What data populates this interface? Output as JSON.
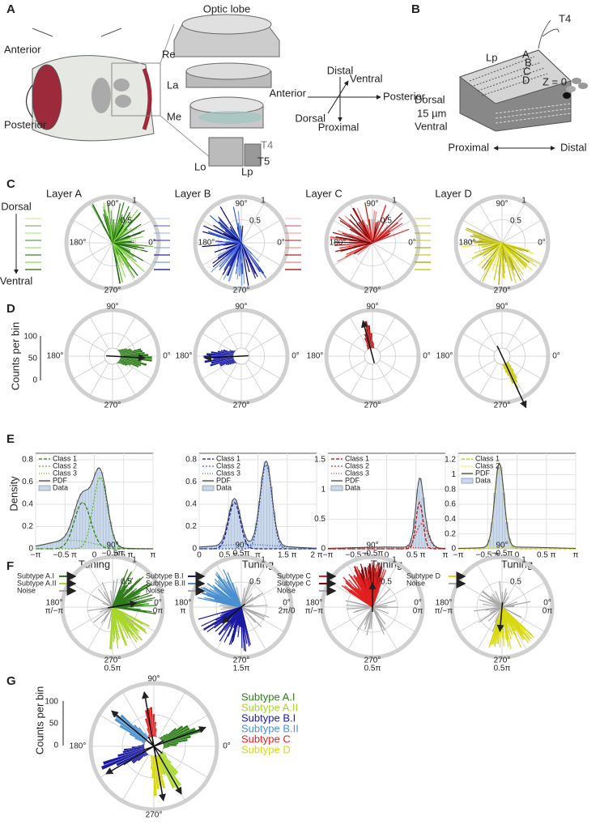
{
  "panel_a": {
    "letter": "A",
    "head_labels": [
      "Anterior",
      "Posterior"
    ],
    "optic_lobe": "Optic lobe",
    "neuropils": [
      "Re",
      "La",
      "Me",
      "Lo",
      "Lp"
    ],
    "cells": [
      "T4",
      "T5"
    ],
    "axes": [
      "Distal",
      "Ventral",
      "Anterior",
      "Posterior",
      "Dorsal",
      "Proximal"
    ]
  },
  "panel_b": {
    "letter": "B",
    "cell": "T4",
    "neuropil": "Lp",
    "layers": [
      "A",
      "B",
      "C",
      "D"
    ],
    "z": "Z = 0",
    "depth": [
      "Dorsal",
      "15 µm",
      "Ventral"
    ],
    "axis": [
      "Proximal",
      "Distal"
    ]
  },
  "panel_c": {
    "letter": "C",
    "titles": [
      "Layer A",
      "Layer B",
      "Layer C",
      "Layer D"
    ],
    "angles": [
      "90°",
      "180°",
      "0°",
      "270°"
    ],
    "radii": [
      "1",
      "0.5"
    ],
    "depth": [
      "Dorsal",
      "Ventral"
    ]
  },
  "panel_d": {
    "letter": "D",
    "ylabel": "Counts per bin",
    "scale": [
      "100",
      "50",
      "0"
    ],
    "angles": [
      "90°",
      "180°",
      "0°",
      "270°"
    ]
  },
  "panel_e": {
    "letter": "E",
    "ylabel": "Density",
    "xlabel": "Tuning",
    "plots": [
      {
        "legend": [
          "Class 1",
          "Class 2",
          "Class 3",
          "PDF",
          "Data"
        ],
        "xticks": [
          "−π",
          "−0.5 π",
          "0",
          "0.5 π",
          "π"
        ],
        "yticks": [
          "0",
          "0.2",
          "0.4",
          "0.6",
          "0.8"
        ]
      },
      {
        "legend": [
          "Class 1",
          "Class 2",
          "Class 3",
          "PDF",
          "Data"
        ],
        "xticks": [
          "0",
          "0.5 π",
          "π",
          "1.5 π",
          "2 π"
        ],
        "yticks": [
          "0",
          "0.2",
          "0.4",
          "0.6",
          "0.8"
        ]
      },
      {
        "legend": [
          "Class 1",
          "Class 2",
          "Class 3",
          "PDF",
          "Data"
        ],
        "xticks": [
          "−π",
          "−0.5 π",
          "0",
          "0.5 π",
          "π"
        ],
        "yticks": [
          "0",
          "0.5",
          "1",
          "1.5"
        ]
      },
      {
        "legend": [
          "Class 1",
          "Class 2",
          "PDF",
          "Data"
        ],
        "xticks": [
          "−π",
          "−0.5 π",
          "0",
          "0.5 π",
          "π"
        ],
        "yticks": [
          "0",
          "0.2",
          "0.4",
          "0.6",
          "0.8",
          "1",
          "1.2"
        ]
      }
    ]
  },
  "panel_f": {
    "letter": "F",
    "radii": [
      "1",
      "0.5"
    ],
    "plots": [
      {
        "legend": [
          "Subtype A.I",
          "Subtype A.II",
          "Noise"
        ],
        "angles": [
          "90°",
          "−0.5π",
          "180°",
          "π/−π",
          "0°",
          "0π",
          "270°",
          "0.5π"
        ]
      },
      {
        "legend": [
          "Subtype B.I",
          "Subtype B.II",
          "Noise"
        ],
        "angles": [
          "90°",
          "0.5π",
          "180°",
          "π",
          "0°",
          "2π/0",
          "270°",
          "1.5π"
        ]
      },
      {
        "legend": [
          "Subtype C",
          "Subtype C",
          "Noise"
        ],
        "angles": [
          "90°",
          "−0.5π",
          "180°",
          "π/−π",
          "0°",
          "0π",
          "270°",
          "0.5π"
        ]
      },
      {
        "legend": [
          "Subtype D",
          "Noise"
        ],
        "angles": [
          "90°",
          "−0.5π",
          "180°",
          "π/−π",
          "0°",
          "0π",
          "270°",
          "0.5π"
        ]
      }
    ]
  },
  "panel_g": {
    "letter": "G",
    "ylabel": "Counts per bin",
    "scale": [
      "100",
      "50",
      "0"
    ],
    "angles": [
      "90°",
      "180°",
      "0°",
      "270°"
    ],
    "legend": [
      "Subtype A.I",
      "Subtype A.II",
      "Subtype B.I",
      "Subtype B.II",
      "Subtype C",
      "Subtype D"
    ]
  }
}
